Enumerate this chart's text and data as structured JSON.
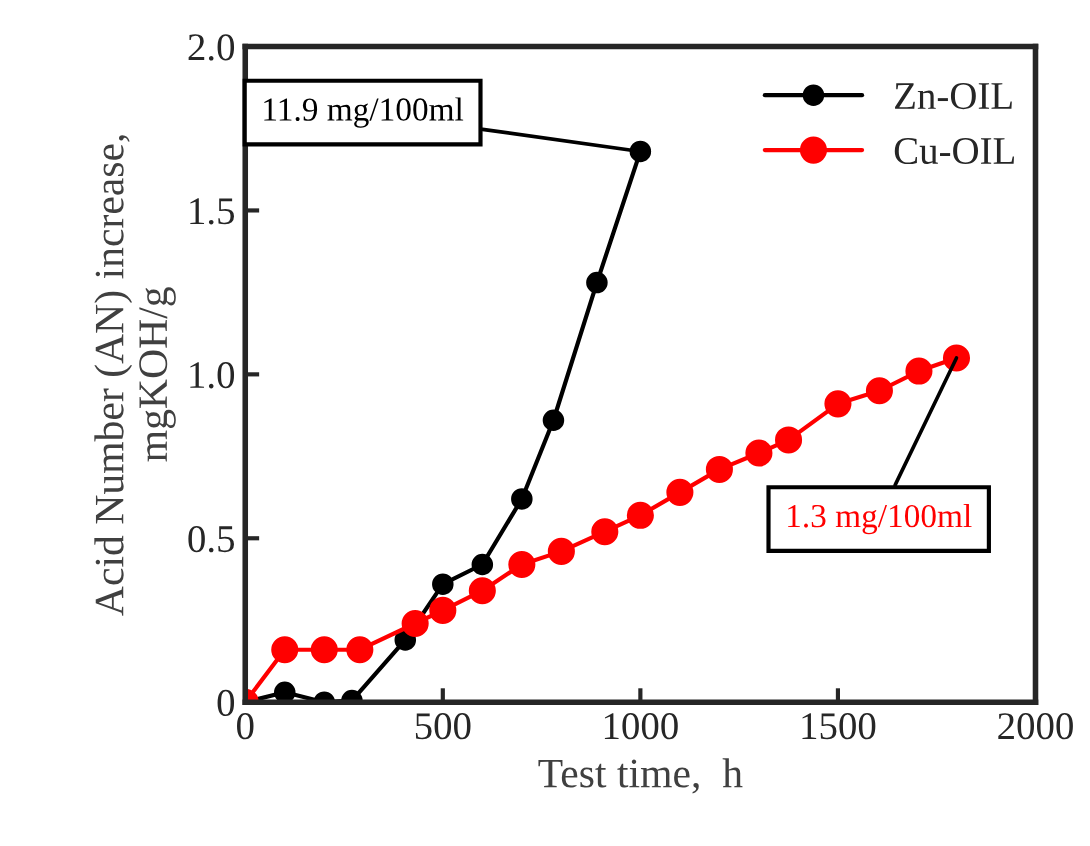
{
  "chart_data": {
    "type": "line",
    "xlabel": "Test time,  h",
    "ylabel": "Acid Number (AN) increase,\nmgKOH/g",
    "xlim": [
      0,
      2000
    ],
    "xticks": [
      0,
      500,
      1000,
      1500,
      2000
    ],
    "ylim": [
      0,
      2.0
    ],
    "yticks": [
      0,
      {
        "value": 0.5,
        "label": "0.5"
      },
      {
        "value": 1.0,
        "label": "1.0"
      },
      {
        "value": 1.5,
        "label": "1.5"
      },
      {
        "value": 2.0,
        "label": "2.0"
      }
    ],
    "series": [
      {
        "name": "Zn-OIL",
        "color": "#000000",
        "x": [
          0,
          100,
          200,
          270,
          405,
          500,
          600,
          700,
          780,
          890,
          1000
        ],
        "values": [
          0,
          0.03,
          0,
          0.005,
          0.19,
          0.36,
          0.42,
          0.62,
          0.86,
          1.28,
          1.68
        ]
      },
      {
        "name": "Cu-OIL",
        "color": "#ff0000",
        "x": [
          0,
          100,
          200,
          290,
          430,
          500,
          600,
          700,
          800,
          910,
          1000,
          1100,
          1200,
          1300,
          1375,
          1500,
          1605,
          1705,
          1800
        ],
        "values": [
          0,
          0.16,
          0.16,
          0.16,
          0.24,
          0.28,
          0.34,
          0.42,
          0.46,
          0.52,
          0.57,
          0.64,
          0.71,
          0.76,
          0.8,
          0.91,
          0.95,
          1.01,
          1.05
        ]
      }
    ],
    "annotations": [
      {
        "text": "11.9 mg/100ml",
        "x": 1000,
        "y": 1.68
      },
      {
        "text": "1.3 mg/100ml",
        "x": 1800,
        "y": 1.05
      }
    ],
    "marker": "circle",
    "line_style": "solid",
    "legend": "top right",
    "grid": false
  }
}
